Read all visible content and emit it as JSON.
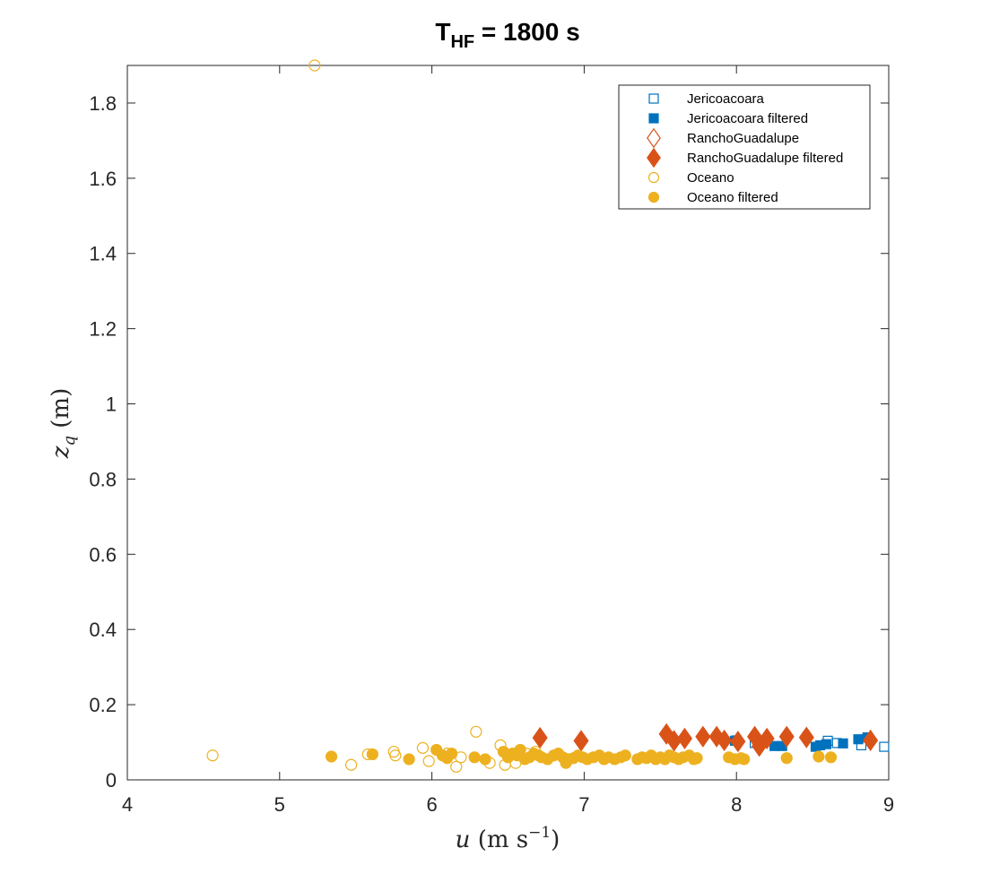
{
  "chart_data": {
    "type": "scatter",
    "title": {
      "main": "T",
      "subscript": "HF",
      "suffix": " = 1800 s"
    },
    "xlabel": {
      "var": "u",
      "unit": "(m s",
      "exponent": "−1",
      "close": ")"
    },
    "ylabel": {
      "var": "z",
      "subscript": "q",
      "unit": "(m)"
    },
    "xlim": [
      4,
      9
    ],
    "ylim": [
      0,
      1.9
    ],
    "xticks": [
      "4",
      "5",
      "6",
      "7",
      "8",
      "9"
    ],
    "yticks": [
      "0",
      "0.2",
      "0.4",
      "0.6",
      "0.8",
      "1",
      "1.2",
      "1.4",
      "1.6",
      "1.8"
    ],
    "grid": false,
    "legend_position": "top-right",
    "series": [
      {
        "name": "Jericoacoara",
        "marker": "square",
        "filled": false,
        "color": "#0072BD",
        "x": [
          8.0,
          8.12,
          8.6,
          8.66,
          8.82,
          8.97
        ],
        "y": [
          0.105,
          0.098,
          0.104,
          0.098,
          0.092,
          0.088
        ]
      },
      {
        "name": "Jericoacoara filtered",
        "marker": "square",
        "filled": true,
        "color": "#0072BD",
        "x": [
          7.99,
          8.25,
          8.3,
          8.52,
          8.55,
          8.59,
          8.7,
          8.8,
          8.86
        ],
        "y": [
          0.104,
          0.09,
          0.09,
          0.088,
          0.092,
          0.095,
          0.097,
          0.108,
          0.113
        ]
      },
      {
        "name": "RanchoGuadalupe",
        "marker": "diamond",
        "filled": false,
        "color": "#D95319",
        "x": [],
        "y": []
      },
      {
        "name": "RanchoGuadalupe filtered",
        "marker": "diamond",
        "filled": true,
        "color": "#D95319",
        "x": [
          6.71,
          6.98,
          7.54,
          7.59,
          7.66,
          7.78,
          7.87,
          7.92,
          8.01,
          8.12,
          8.15,
          8.2,
          8.33,
          8.46,
          8.88
        ],
        "y": [
          0.112,
          0.104,
          0.122,
          0.104,
          0.11,
          0.115,
          0.115,
          0.105,
          0.102,
          0.115,
          0.09,
          0.11,
          0.115,
          0.113,
          0.105
        ]
      },
      {
        "name": "Oceano",
        "marker": "circle",
        "filled": false,
        "color": "#EDB120",
        "x": [
          5.23,
          4.56,
          5.47,
          5.58,
          5.75,
          5.76,
          5.94,
          5.98,
          6.1,
          6.16,
          6.19,
          6.29,
          6.38,
          6.45,
          6.48,
          6.55,
          6.62,
          6.68
        ],
        "y": [
          1.9,
          0.065,
          0.04,
          0.068,
          0.075,
          0.065,
          0.085,
          0.05,
          0.07,
          0.035,
          0.06,
          0.128,
          0.045,
          0.092,
          0.04,
          0.045,
          0.07,
          0.075
        ]
      },
      {
        "name": "Oceano filtered",
        "marker": "circle",
        "filled": true,
        "color": "#EDB120",
        "x": [
          5.34,
          5.61,
          5.85,
          6.03,
          6.07,
          6.1,
          6.13,
          6.28,
          6.35,
          6.47,
          6.5,
          6.53,
          6.56,
          6.58,
          6.61,
          6.64,
          6.67,
          6.7,
          6.72,
          6.76,
          6.8,
          6.83,
          6.86,
          6.88,
          6.9,
          6.93,
          6.96,
          6.99,
          7.02,
          7.06,
          7.1,
          7.13,
          7.16,
          7.2,
          7.24,
          7.27,
          7.35,
          7.38,
          7.41,
          7.44,
          7.47,
          7.5,
          7.53,
          7.56,
          7.59,
          7.62,
          7.65,
          7.69,
          7.72,
          7.74,
          7.95,
          7.99,
          8.03,
          8.05,
          8.33,
          8.54,
          8.62
        ],
        "y": [
          0.062,
          0.068,
          0.055,
          0.08,
          0.065,
          0.058,
          0.07,
          0.06,
          0.055,
          0.075,
          0.06,
          0.07,
          0.065,
          0.08,
          0.055,
          0.06,
          0.07,
          0.065,
          0.06,
          0.055,
          0.065,
          0.07,
          0.06,
          0.045,
          0.055,
          0.058,
          0.065,
          0.06,
          0.055,
          0.06,
          0.065,
          0.055,
          0.06,
          0.055,
          0.06,
          0.065,
          0.055,
          0.06,
          0.058,
          0.065,
          0.055,
          0.06,
          0.055,
          0.065,
          0.06,
          0.055,
          0.06,
          0.065,
          0.055,
          0.058,
          0.06,
          0.055,
          0.058,
          0.055,
          0.058,
          0.062,
          0.06
        ]
      }
    ]
  }
}
